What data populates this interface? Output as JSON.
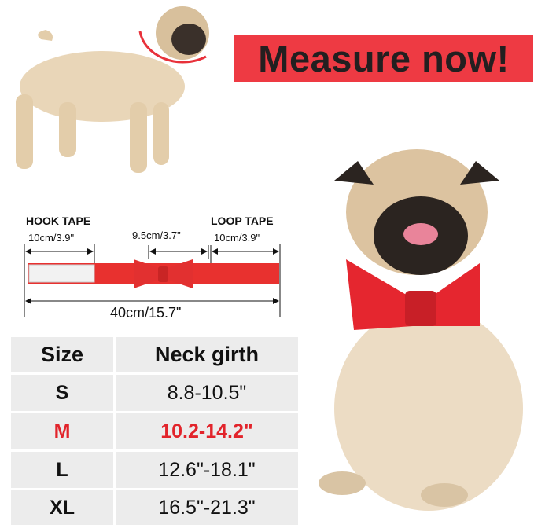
{
  "banner": {
    "text": "Measure now!",
    "color": "#ee3a43"
  },
  "diagram": {
    "hook_label": "HOOK TAPE",
    "loop_label": "LOOP TAPE",
    "hook_length": "10cm/3.9\"",
    "bow_width": "9.5cm/3.7\"",
    "loop_length": "10cm/3.9\"",
    "total_length": "40cm/15.7\""
  },
  "size_table": {
    "headers": [
      "Size",
      "Neck girth"
    ],
    "rows": [
      {
        "size": "S",
        "girth": "8.8-10.5\""
      },
      {
        "size": "M",
        "girth": "10.2-14.2\"",
        "highlight": true
      },
      {
        "size": "L",
        "girth": "12.6\"-18.1\""
      },
      {
        "size": "XL",
        "girth": "16.5\"-21.3\""
      }
    ],
    "highlight_color": "#e2242b"
  }
}
